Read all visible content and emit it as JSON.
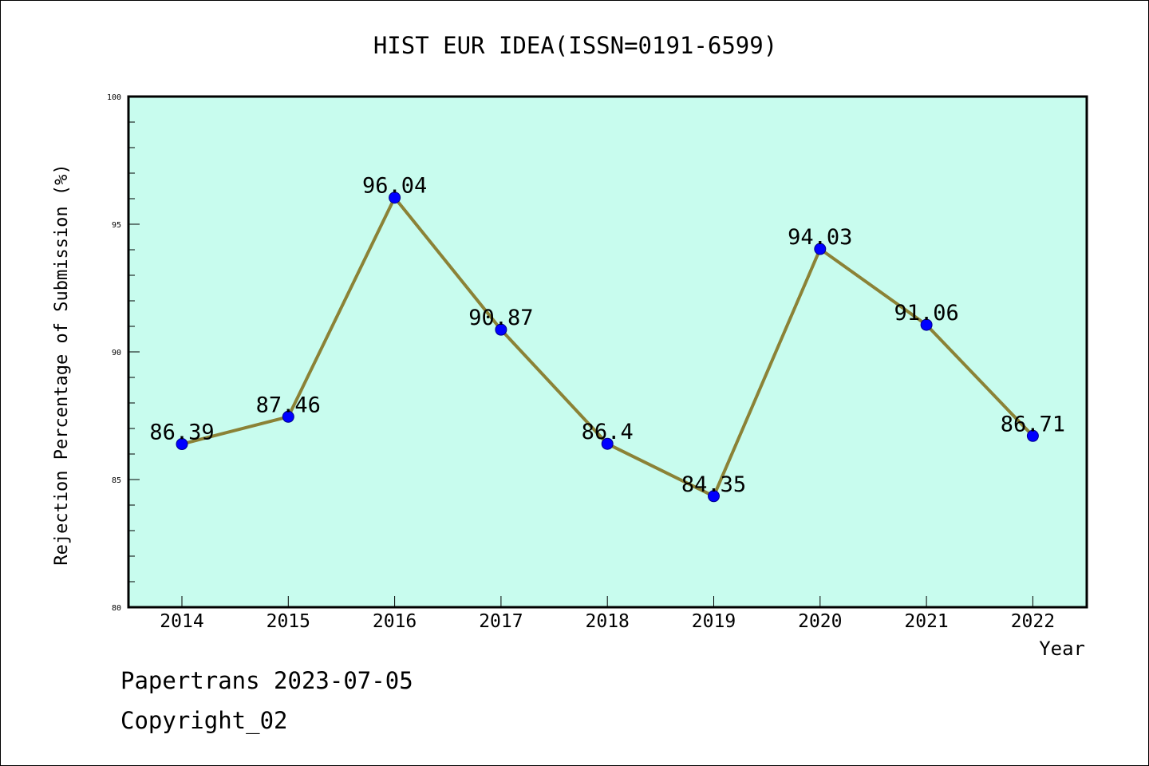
{
  "chart_data": {
    "type": "line",
    "title": "HIST EUR IDEA(ISSN=0191-6599)",
    "xlabel": "Year",
    "ylabel": "Rejection Percentage of Submission (%)",
    "categories": [
      "2014",
      "2015",
      "2016",
      "2017",
      "2018",
      "2019",
      "2020",
      "2021",
      "2022"
    ],
    "series": [
      {
        "values": [
          86.39,
          87.46,
          96.04,
          90.87,
          86.4,
          84.35,
          94.03,
          91.06,
          86.71
        ],
        "labels": [
          "86.39",
          "87.46",
          "96.04",
          "90.87",
          "86.4",
          "84.35",
          "94.03",
          "91.06",
          "86.71"
        ],
        "line_color": "#8b8236",
        "marker_color": "#0000ff"
      }
    ],
    "ylim": [
      80,
      100
    ],
    "yticks": [
      "80",
      "85",
      "90",
      "95",
      "100"
    ],
    "grid": false,
    "plot_background": "#c8fcee"
  },
  "footer": {
    "line1": "Papertrans 2023-07-05",
    "line2": "Copyright_02"
  }
}
